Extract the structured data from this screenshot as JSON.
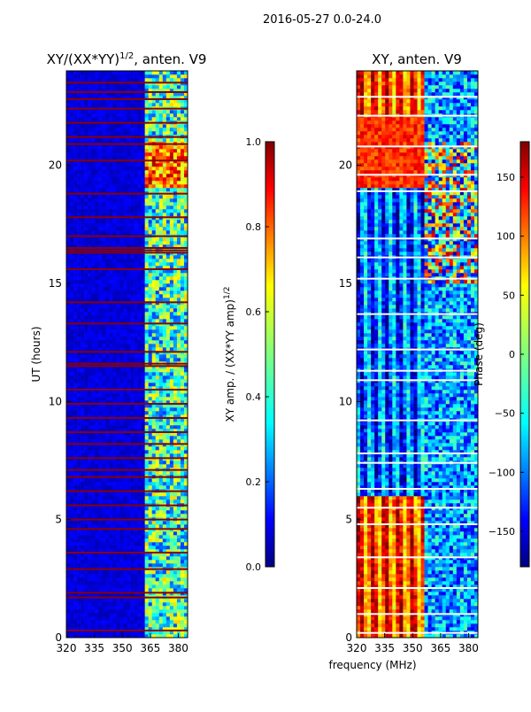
{
  "suptitle": "2016-05-27 0.0-24.0",
  "shared_xlabel": "frequency (MHz)",
  "chart_data": [
    {
      "type": "heatmap",
      "title": "XY/(XX*YY)",
      "title_superscript": "1/2",
      "title_suffix": ", anten. V9",
      "xlabel": "",
      "ylabel": "UT (hours)",
      "xlim": [
        320,
        385
      ],
      "ylim": [
        0,
        24
      ],
      "xticks": [
        320,
        335,
        350,
        365,
        380
      ],
      "yticks": [
        0,
        5,
        10,
        15,
        20
      ],
      "colormap": "jet",
      "colorbar": {
        "label": "XY amp. / (XX*YY amp)",
        "label_superscript": "1/2",
        "range": [
          0.0,
          1.0
        ],
        "ticks": [
          "0.0",
          "0.2",
          "0.4",
          "0.6",
          "0.8",
          "1.0"
        ]
      },
      "description_values": {
        "background_level": 0.05,
        "high_band_start_mhz": 362,
        "high_band_level": 0.45,
        "flagged_red_rows_utc": [
          0.3,
          1.7,
          1.9,
          2.9,
          3.6,
          4.6,
          5.0,
          5.6,
          6.2,
          6.8,
          7.1,
          7.6,
          8.2,
          8.7,
          9.3,
          9.9,
          10.5,
          11.5,
          11.6,
          12.1,
          13.3,
          14.2,
          15.6,
          16.3,
          16.4,
          16.5,
          17.0,
          17.8,
          18.8,
          20.2,
          20.9,
          21.2,
          21.8,
          22.4,
          22.8,
          23.1,
          23.5
        ]
      }
    },
    {
      "type": "heatmap",
      "title": "XY, anten. V9",
      "xlabel": "frequency (MHz)",
      "ylabel": "",
      "xlim": [
        320,
        385
      ],
      "ylim": [
        0,
        24
      ],
      "xticks": [
        320,
        335,
        350,
        365,
        380
      ],
      "yticks": [
        0,
        5,
        10,
        15,
        20
      ],
      "colormap": "jet",
      "colorbar": {
        "label": "Phase (deg)",
        "range": [
          -180,
          180
        ],
        "ticks": [
          "−150",
          "−100",
          "−50",
          "0",
          "50",
          "100",
          "150"
        ]
      },
      "description_values": {
        "red_region_low_freq_phase_deg": 150,
        "blue_region_high_freq_phase_deg": -120,
        "white_gap_rows_utc": [
          0.2,
          1.0,
          2.1,
          3.4,
          4.8,
          5.5,
          6.3,
          7.4,
          7.8,
          9.2,
          10.9,
          11.3,
          12.2,
          13.7,
          15.2,
          16.1,
          16.9,
          18.9,
          19.6,
          20.8,
          22.1,
          22.9
        ]
      }
    }
  ]
}
